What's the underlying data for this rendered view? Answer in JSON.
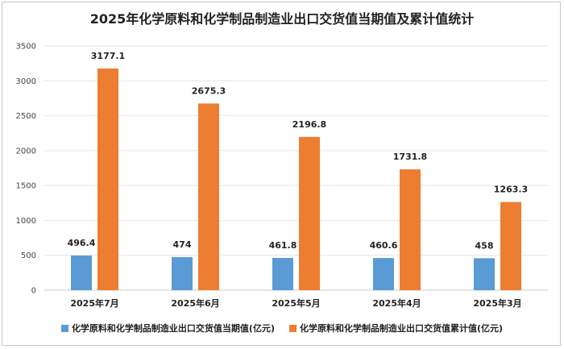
{
  "chart_data": {
    "type": "bar",
    "title": "2025年化学原料和化学制品制造业出口交货值当期值及累计值统计",
    "categories": [
      "2025年7月",
      "2025年6月",
      "2025年5月",
      "2025年4月",
      "2025年3月"
    ],
    "series": [
      {
        "name": "化学原料和化学制品制造业出口交货值当期值(亿元)",
        "color": "#5b9bd5",
        "values": [
          496.4,
          474,
          461.8,
          460.6,
          458
        ],
        "labels": [
          "496.4",
          "474",
          "461.8",
          "460.6",
          "458"
        ]
      },
      {
        "name": "化学原料和化学制品制造业出口交货值累计值(亿元)",
        "color": "#ed7d31",
        "values": [
          3177.1,
          2675.3,
          2196.8,
          1731.8,
          1263.3
        ],
        "labels": [
          "3177.1",
          "2675.3",
          "2196.8",
          "1731.8",
          "1263.3"
        ]
      }
    ],
    "ylim": [
      0,
      3500
    ],
    "yticks": [
      0,
      500,
      1000,
      1500,
      2000,
      2500,
      3000,
      3500
    ],
    "grid": true,
    "legend_position": "bottom"
  }
}
